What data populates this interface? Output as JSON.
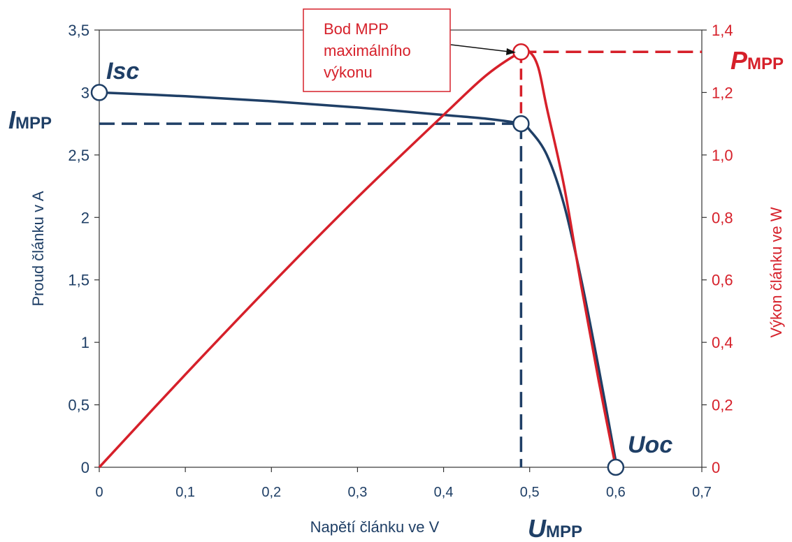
{
  "chart_data": {
    "type": "line",
    "xlabel": "Napětí článku ve V",
    "ylabel_left": "Proud článku v A",
    "ylabel_right": "Výkon článku ve W",
    "xlim": [
      0,
      0.7
    ],
    "ylim_left": [
      0,
      3.5
    ],
    "ylim_right": [
      0,
      1.4
    ],
    "x_ticks": [
      "0",
      "0,1",
      "0,2",
      "0,3",
      "0,4",
      "0,5",
      "0,6",
      "0,7"
    ],
    "y_left_ticks": [
      "0",
      "0,5",
      "1",
      "1,5",
      "2",
      "2,5",
      "3",
      "3,5"
    ],
    "y_right_ticks": [
      "0",
      "0,2",
      "0,4",
      "0,6",
      "0,8",
      "1,0",
      "1,2",
      "1,4"
    ],
    "grid": false,
    "series": [
      {
        "axis": "left",
        "color": "#1f3f66",
        "points": [
          [
            0,
            3.0
          ],
          [
            0.1,
            2.97
          ],
          [
            0.2,
            2.93
          ],
          [
            0.3,
            2.88
          ],
          [
            0.4,
            2.82
          ],
          [
            0.45,
            2.79
          ],
          [
            0.49,
            2.75
          ],
          [
            0.5,
            2.7
          ],
          [
            0.52,
            2.5
          ],
          [
            0.54,
            2.1
          ],
          [
            0.56,
            1.5
          ],
          [
            0.58,
            0.8
          ],
          [
            0.6,
            0.05
          ]
        ]
      },
      {
        "axis": "right",
        "color": "#d6202a",
        "points": [
          [
            0,
            0
          ],
          [
            0.1,
            0.297
          ],
          [
            0.2,
            0.586
          ],
          [
            0.3,
            0.864
          ],
          [
            0.4,
            1.128
          ],
          [
            0.45,
            1.256
          ],
          [
            0.49,
            1.33
          ],
          [
            0.5,
            1.33
          ],
          [
            0.51,
            1.28
          ],
          [
            0.52,
            1.15
          ],
          [
            0.54,
            0.9
          ],
          [
            0.56,
            0.58
          ],
          [
            0.58,
            0.28
          ],
          [
            0.6,
            0.0
          ]
        ]
      }
    ],
    "markers": [
      {
        "name": "isc",
        "x": 0,
        "y": 3.0,
        "axis": "left"
      },
      {
        "name": "mpp-current",
        "x": 0.49,
        "y": 2.75,
        "axis": "left"
      },
      {
        "name": "mpp-power",
        "x": 0.49,
        "y": 1.33,
        "axis": "right"
      },
      {
        "name": "uoc",
        "x": 0.6,
        "y": 0,
        "axis": "left"
      }
    ],
    "mpp": {
      "x": 0.49,
      "i": 2.75,
      "p": 1.33
    },
    "labels": {
      "isc": "Isc",
      "impp_main": "I",
      "impp_sub": "MPP",
      "pmpp_main": "P",
      "pmpp_sub": "MPP",
      "umpp_main": "U",
      "umpp_sub": "MPP",
      "uoc": "Uoc"
    },
    "annotation": {
      "lines": [
        "Bod MPP",
        "maximálního",
        "výkonu"
      ]
    }
  }
}
